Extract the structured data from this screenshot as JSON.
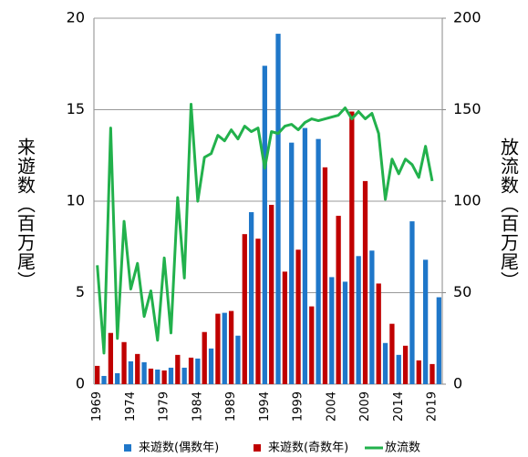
{
  "chart_data": {
    "type": "bar",
    "categories": [
      "1969",
      null,
      null,
      null,
      null,
      "1974",
      null,
      null,
      null,
      null,
      "1979",
      null,
      null,
      null,
      null,
      "1984",
      null,
      null,
      null,
      null,
      "1989",
      null,
      null,
      null,
      null,
      "1994",
      null,
      null,
      null,
      null,
      "1999",
      null,
      null,
      null,
      null,
      "2004",
      null,
      null,
      null,
      null,
      "2009",
      null,
      null,
      null,
      null,
      "2014",
      null,
      null,
      null,
      null,
      "2019",
      null
    ],
    "y_label": "来遊数（百万尾）",
    "y2_label": "放流数（百万尾）",
    "ylim": [
      0,
      20
    ],
    "yticks": [
      0,
      5,
      10,
      15,
      20
    ],
    "y2lim": [
      0,
      200
    ],
    "y2ticks": [
      0,
      50,
      100,
      150,
      200
    ],
    "grid": true,
    "legend": "bottom",
    "series": [
      {
        "name": "来遊数(偶数年)",
        "color": "#1f77c9",
        "values": [
          null,
          0.45,
          null,
          0.6,
          null,
          1.25,
          null,
          1.2,
          null,
          0.8,
          null,
          0.9,
          null,
          0.9,
          null,
          1.4,
          null,
          1.95,
          null,
          3.9,
          null,
          2.65,
          null,
          9.4,
          null,
          17.4,
          null,
          19.15,
          null,
          13.2,
          null,
          14.0,
          null,
          13.4,
          null,
          5.85,
          null,
          5.6,
          null,
          7.0,
          null,
          7.3,
          null,
          2.25,
          null,
          1.6,
          null,
          8.9,
          null,
          6.8,
          null,
          4.75
        ]
      },
      {
        "name": "来遊数(奇数年)",
        "color": "#c00000",
        "values": [
          1.0,
          null,
          2.8,
          null,
          2.3,
          null,
          1.65,
          null,
          0.85,
          null,
          0.75,
          null,
          1.6,
          null,
          1.45,
          null,
          2.85,
          null,
          3.85,
          null,
          4.0,
          null,
          8.2,
          null,
          7.95,
          null,
          9.8,
          null,
          6.15,
          null,
          7.35,
          null,
          4.25,
          null,
          11.85,
          null,
          9.2,
          null,
          14.9,
          null,
          11.1,
          null,
          5.5,
          null,
          3.3,
          null,
          2.1,
          null,
          1.3,
          null,
          1.1,
          null
        ]
      },
      {
        "name": "放流数",
        "color": "#22b14c",
        "type": "line",
        "axis": "y2",
        "values": [
          65,
          17,
          140,
          25,
          89,
          52,
          66,
          37,
          51,
          24,
          69,
          28,
          102,
          58,
          153,
          100,
          124,
          126,
          136,
          133,
          139,
          134,
          141,
          138,
          140,
          118,
          138,
          137,
          141,
          142,
          139,
          143,
          145,
          144,
          145,
          146,
          147,
          151,
          145,
          149,
          145,
          148,
          137,
          101,
          123,
          115,
          123,
          120,
          113,
          130,
          111,
          null
        ]
      }
    ]
  }
}
